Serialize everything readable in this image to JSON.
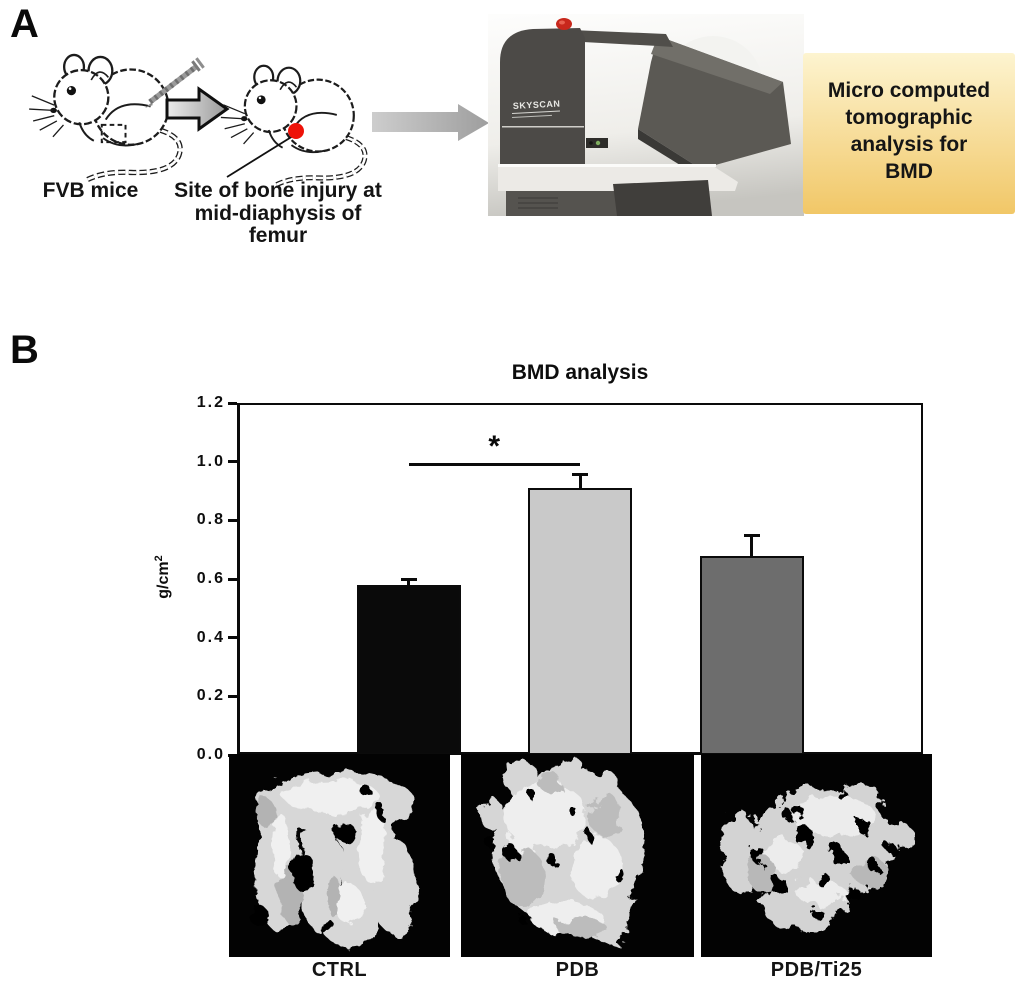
{
  "figure": {
    "panel_a_label": "A",
    "panel_b_label": "B"
  },
  "panel_a": {
    "fvb_caption": "FVB mice",
    "injury_caption_lines": [
      "Site of bone injury at",
      "mid-diaphysis of",
      "femur"
    ],
    "machine_brand": "SKYSCAN",
    "info_box": {
      "lines": [
        "Micro computed",
        "tomographic",
        "analysis for",
        "BMD"
      ],
      "bg_top": "#fdf4d0",
      "bg_bottom": "#f1c767"
    }
  },
  "chart_data": {
    "type": "bar",
    "title": "BMD analysis",
    "ylabel": "g/cm",
    "ylabel_sup": "2",
    "ylim": [
      0,
      1.2
    ],
    "yticks": [
      1.2,
      1.0,
      0.8,
      0.6,
      0.4,
      0.2,
      0.0
    ],
    "grid": false,
    "legend": null,
    "categories": [
      "CTRL",
      "PDB",
      "PDB/Ti25"
    ],
    "values": [
      0.58,
      0.91,
      0.68
    ],
    "errors_plus": [
      0.02,
      0.045,
      0.07
    ],
    "bar_colors": [
      "#0a0a0a",
      "#c9c9c9",
      "#6d6d6d"
    ],
    "significance": {
      "between": [
        "CTRL",
        "PDB"
      ],
      "symbol": "*",
      "line_y": 0.99
    }
  }
}
